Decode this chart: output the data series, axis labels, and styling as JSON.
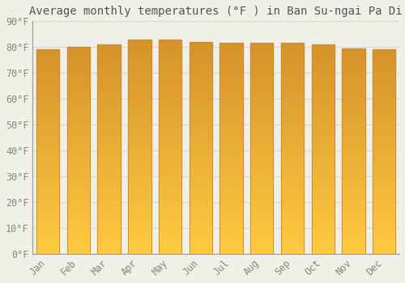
{
  "title": "Average monthly temperatures (°F ) in Ban Su-ngai Pa Di",
  "months": [
    "Jan",
    "Feb",
    "Mar",
    "Apr",
    "May",
    "Jun",
    "Jul",
    "Aug",
    "Sep",
    "Oct",
    "Nov",
    "Dec"
  ],
  "values": [
    79.0,
    80.0,
    81.0,
    83.0,
    83.0,
    82.0,
    81.5,
    81.5,
    81.5,
    81.0,
    79.5,
    79.0
  ],
  "ylim": [
    0,
    90
  ],
  "yticks": [
    0,
    10,
    20,
    30,
    40,
    50,
    60,
    70,
    80,
    90
  ],
  "ytick_labels": [
    "0°F",
    "10°F",
    "20°F",
    "30°F",
    "40°F",
    "50°F",
    "60°F",
    "70°F",
    "80°F",
    "90°F"
  ],
  "bar_color_top": "#E8A030",
  "bar_color_bottom": "#FFC940",
  "bar_edge_color": "#C8883A",
  "background_color": "#F0EFE8",
  "grid_color": "#D8D8D0",
  "title_fontsize": 10,
  "tick_fontsize": 8.5,
  "font_family": "monospace"
}
